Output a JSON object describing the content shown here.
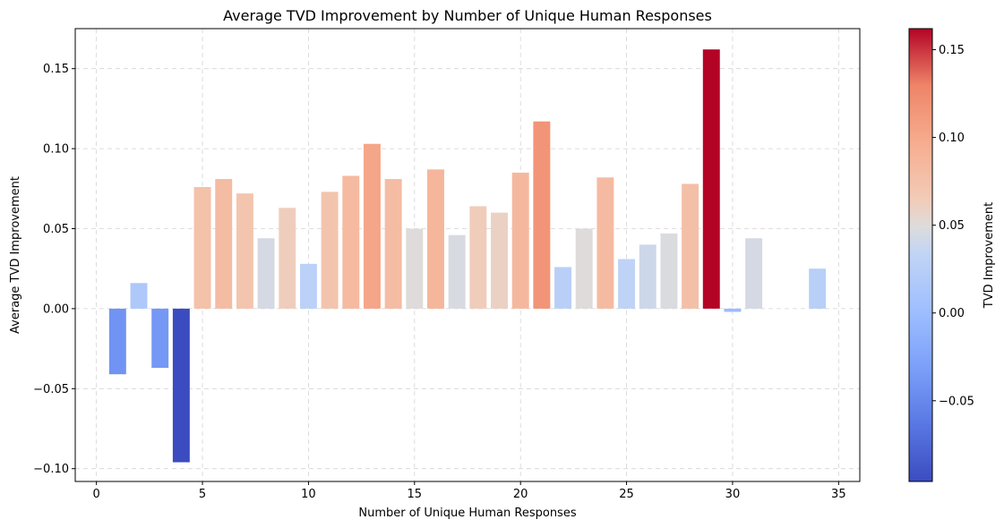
{
  "chart_data": {
    "type": "bar",
    "title": "Average TVD Improvement by Number of Unique Human Responses",
    "xlabel": "Number of Unique Human Responses",
    "ylabel": "Average TVD Improvement",
    "xlim": [
      -1,
      36
    ],
    "ylim": [
      -0.108,
      0.175
    ],
    "xticks": [
      0,
      5,
      10,
      15,
      20,
      25,
      30,
      35
    ],
    "xtick_labels": [
      "0",
      "5",
      "10",
      "15",
      "20",
      "25",
      "30",
      "35"
    ],
    "yticks": [
      -0.1,
      -0.05,
      0.0,
      0.05,
      0.1,
      0.15
    ],
    "ytick_labels": [
      "−0.10",
      "−0.05",
      "0.00",
      "0.05",
      "0.10",
      "0.15"
    ],
    "grid": true,
    "colormap": "coolwarm",
    "x": [
      1,
      2,
      3,
      4,
      5,
      6,
      7,
      8,
      9,
      10,
      11,
      12,
      13,
      14,
      15,
      16,
      17,
      18,
      19,
      20,
      21,
      22,
      23,
      24,
      25,
      26,
      27,
      28,
      29,
      30,
      31,
      34
    ],
    "values": [
      -0.041,
      0.016,
      -0.037,
      -0.096,
      0.076,
      0.081,
      0.072,
      0.044,
      0.063,
      0.028,
      0.073,
      0.083,
      0.103,
      0.081,
      0.05,
      0.087,
      0.046,
      0.064,
      0.06,
      0.085,
      0.117,
      0.026,
      0.05,
      0.082,
      0.031,
      0.04,
      0.047,
      0.078,
      0.162,
      -0.002,
      0.044,
      0.025
    ],
    "colorbar": {
      "label": "TVD Improvement",
      "vmin": -0.096,
      "vmax": 0.162,
      "ticks": [
        -0.05,
        0.0,
        0.05,
        0.1,
        0.15
      ],
      "tick_labels": [
        "−0.05",
        "0.00",
        "0.05",
        "0.10",
        "0.15"
      ]
    }
  }
}
